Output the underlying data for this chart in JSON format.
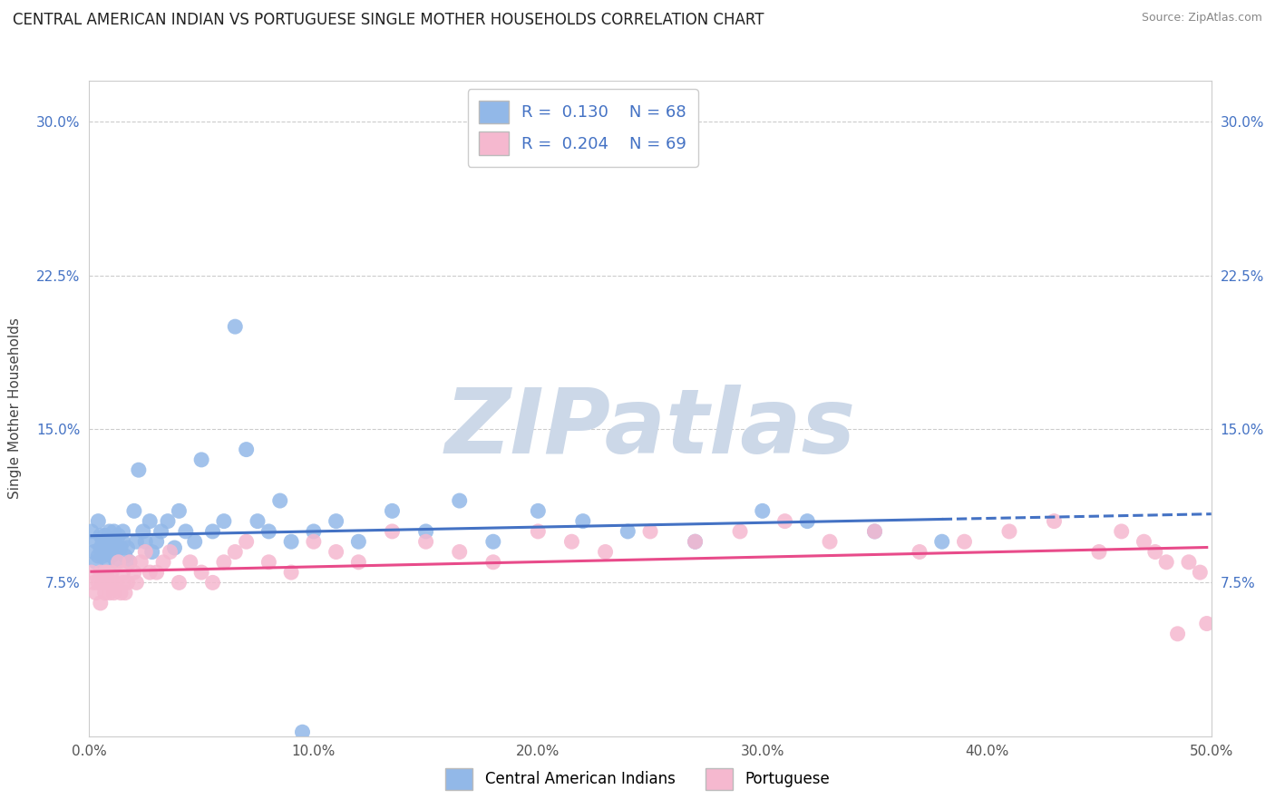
{
  "title": "CENTRAL AMERICAN INDIAN VS PORTUGUESE SINGLE MOTHER HOUSEHOLDS CORRELATION CHART",
  "source": "Source: ZipAtlas.com",
  "ylabel": "Single Mother Households",
  "xlim": [
    0.0,
    0.5
  ],
  "ylim": [
    0.0,
    0.32
  ],
  "xticks": [
    0.0,
    0.1,
    0.2,
    0.3,
    0.4,
    0.5
  ],
  "xtick_labels": [
    "0.0%",
    "10.0%",
    "20.0%",
    "30.0%",
    "40.0%",
    "50.0%"
  ],
  "yticks": [
    0.075,
    0.15,
    0.225,
    0.3
  ],
  "ytick_labels": [
    "7.5%",
    "15.0%",
    "22.5%",
    "30.0%"
  ],
  "grid_color": "#cccccc",
  "background_color": "#ffffff",
  "title_fontsize": 12,
  "axis_label_fontsize": 11,
  "tick_fontsize": 11,
  "series": [
    {
      "label": "Central American Indians",
      "R": 0.13,
      "N": 68,
      "color": "#92b8e8",
      "line_color": "#4472c4",
      "x": [
        0.001,
        0.002,
        0.003,
        0.003,
        0.004,
        0.004,
        0.005,
        0.005,
        0.006,
        0.006,
        0.007,
        0.007,
        0.008,
        0.008,
        0.009,
        0.009,
        0.01,
        0.01,
        0.011,
        0.011,
        0.012,
        0.012,
        0.013,
        0.014,
        0.015,
        0.015,
        0.016,
        0.017,
        0.018,
        0.02,
        0.021,
        0.022,
        0.024,
        0.025,
        0.027,
        0.028,
        0.03,
        0.032,
        0.035,
        0.038,
        0.04,
        0.043,
        0.047,
        0.05,
        0.055,
        0.06,
        0.065,
        0.07,
        0.075,
        0.08,
        0.085,
        0.09,
        0.095,
        0.1,
        0.11,
        0.12,
        0.135,
        0.15,
        0.165,
        0.18,
        0.2,
        0.22,
        0.24,
        0.27,
        0.3,
        0.32,
        0.35,
        0.38
      ],
      "y": [
        0.1,
        0.09,
        0.095,
        0.085,
        0.105,
        0.088,
        0.092,
        0.098,
        0.095,
        0.088,
        0.092,
        0.098,
        0.085,
        0.09,
        0.095,
        0.1,
        0.092,
        0.088,
        0.095,
        0.1,
        0.09,
        0.085,
        0.098,
        0.092,
        0.095,
        0.1,
        0.088,
        0.092,
        0.085,
        0.11,
        0.095,
        0.13,
        0.1,
        0.095,
        0.105,
        0.09,
        0.095,
        0.1,
        0.105,
        0.092,
        0.11,
        0.1,
        0.095,
        0.135,
        0.1,
        0.105,
        0.2,
        0.14,
        0.105,
        0.1,
        0.115,
        0.095,
        0.002,
        0.1,
        0.105,
        0.095,
        0.11,
        0.1,
        0.115,
        0.095,
        0.11,
        0.105,
        0.1,
        0.095,
        0.11,
        0.105,
        0.1,
        0.095
      ]
    },
    {
      "label": "Portuguese",
      "R": 0.204,
      "N": 69,
      "color": "#f5b8cf",
      "line_color": "#e84b8a",
      "x": [
        0.001,
        0.002,
        0.003,
        0.004,
        0.005,
        0.005,
        0.006,
        0.007,
        0.007,
        0.008,
        0.008,
        0.009,
        0.01,
        0.01,
        0.011,
        0.012,
        0.013,
        0.014,
        0.015,
        0.015,
        0.016,
        0.017,
        0.018,
        0.02,
        0.021,
        0.023,
        0.025,
        0.027,
        0.03,
        0.033,
        0.036,
        0.04,
        0.045,
        0.05,
        0.055,
        0.06,
        0.065,
        0.07,
        0.08,
        0.09,
        0.1,
        0.11,
        0.12,
        0.135,
        0.15,
        0.165,
        0.18,
        0.2,
        0.215,
        0.23,
        0.25,
        0.27,
        0.29,
        0.31,
        0.33,
        0.35,
        0.37,
        0.39,
        0.41,
        0.43,
        0.45,
        0.46,
        0.47,
        0.475,
        0.48,
        0.485,
        0.49,
        0.495,
        0.498
      ],
      "y": [
        0.08,
        0.075,
        0.07,
        0.075,
        0.08,
        0.065,
        0.075,
        0.08,
        0.07,
        0.075,
        0.08,
        0.07,
        0.075,
        0.08,
        0.07,
        0.075,
        0.085,
        0.07,
        0.075,
        0.08,
        0.07,
        0.075,
        0.085,
        0.08,
        0.075,
        0.085,
        0.09,
        0.08,
        0.08,
        0.085,
        0.09,
        0.075,
        0.085,
        0.08,
        0.075,
        0.085,
        0.09,
        0.095,
        0.085,
        0.08,
        0.095,
        0.09,
        0.085,
        0.1,
        0.095,
        0.09,
        0.085,
        0.1,
        0.095,
        0.09,
        0.1,
        0.095,
        0.1,
        0.105,
        0.095,
        0.1,
        0.09,
        0.095,
        0.1,
        0.105,
        0.09,
        0.1,
        0.095,
        0.09,
        0.085,
        0.05,
        0.085,
        0.08,
        0.055
      ]
    }
  ],
  "watermark_text": "ZIPatlas",
  "watermark_color": "#ccd8e8",
  "title_color": "#222222",
  "source_color": "#888888",
  "tick_color_y": "#4472c4",
  "tick_color_x": "#555555"
}
